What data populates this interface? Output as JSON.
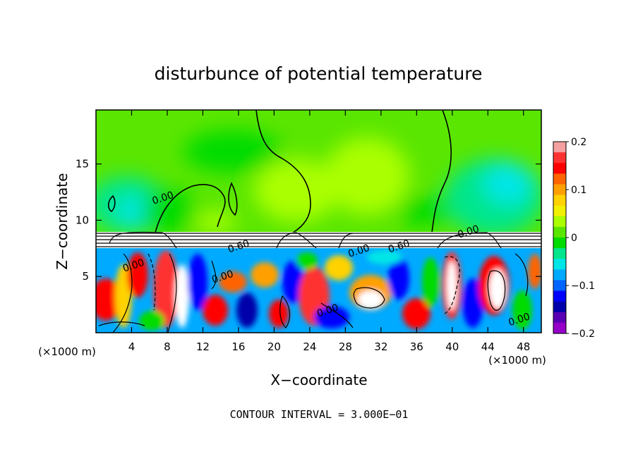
{
  "chart_data": {
    "type": "heatmap",
    "title": "disturbunce of potential temperature",
    "xlabel": "X−coordinate",
    "ylabel": "Z−coordinate",
    "x_unit_label": "(×1000 m)",
    "x_unit_label_right": "(×1000 m)",
    "xlim": [
      0,
      50
    ],
    "ylim": [
      0,
      19.8
    ],
    "x_ticks": [
      4,
      8,
      12,
      16,
      20,
      24,
      28,
      32,
      36,
      40,
      44,
      48
    ],
    "x_tick_labels": [
      "4",
      "8",
      "12",
      "16",
      "20",
      "24",
      "28",
      "32",
      "36",
      "40",
      "44",
      "48"
    ],
    "y_ticks": [
      5,
      10,
      15
    ],
    "y_tick_labels": [
      "5",
      "10",
      "15"
    ],
    "colorbar": {
      "range": [
        -0.2,
        0.2
      ],
      "ticks": [
        0.2,
        0.1,
        0,
        -0.1,
        -0.2
      ],
      "tick_labels": [
        "0.2",
        "0.1",
        "0",
        "−0.1",
        "−0.2"
      ],
      "colors": [
        "#f5a0a0",
        "#ff3232",
        "#ff0000",
        "#ff6400",
        "#ffa000",
        "#ffd200",
        "#f0f000",
        "#aaff00",
        "#5ae600",
        "#00dc00",
        "#00e68c",
        "#00e6e6",
        "#00aaff",
        "#0064ff",
        "#0000ff",
        "#0000aa",
        "#5a00b4",
        "#9600c8"
      ]
    },
    "field_summary": {
      "upper_layer_z_range": [
        9,
        19.8
      ],
      "upper_layer_value_range": [
        -0.05,
        0.04
      ],
      "lower_layer_z_range": [
        0,
        8
      ],
      "lower_layer_value_range": [
        -0.2,
        0.2
      ],
      "interface_z": 8.7
    },
    "contour_labels": [
      {
        "text": "0.00",
        "x": 7.5,
        "z": 12.0
      },
      {
        "text": "0.00",
        "x": 4.2,
        "z": 6.0
      },
      {
        "text": "0.00",
        "x": 14.2,
        "z": 5.0
      },
      {
        "text": "0.60",
        "x": 16.0,
        "z": 7.7
      },
      {
        "text": "0.00",
        "x": 29.5,
        "z": 7.3
      },
      {
        "text": "0.60",
        "x": 34.0,
        "z": 7.7
      },
      {
        "text": "0.00",
        "x": 41.8,
        "z": 9.0
      },
      {
        "text": "0.00",
        "x": 26.0,
        "z": 2.0
      },
      {
        "text": "0.00",
        "x": 47.5,
        "z": 1.2
      }
    ],
    "annotation": "CONTOUR INTERVAL = 3.000E−01"
  }
}
